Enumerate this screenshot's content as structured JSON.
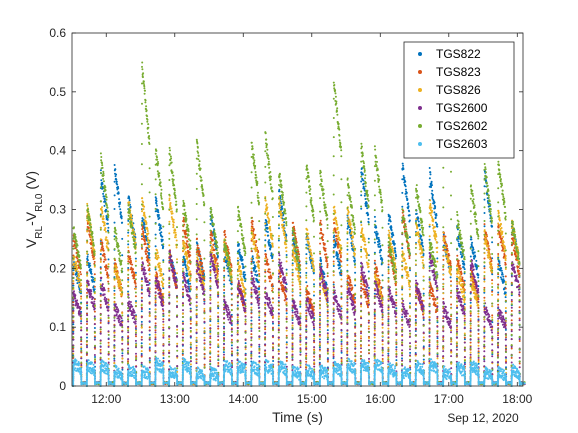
{
  "chart_data": {
    "type": "scatter",
    "xlabel": "Time (s)",
    "ylabel_main": "V",
    "ylabel_sub1": "RL",
    "ylabel_mid": "-V",
    "ylabel_sub2": "RL0",
    "ylabel_unit": " (V)",
    "date_label": "Sep 12, 2020",
    "x_ticks": [
      "12:00",
      "13:00",
      "14:00",
      "15:00",
      "16:00",
      "17:00",
      "18:00"
    ],
    "y_ticks": [
      "0",
      "0.1",
      "0.2",
      "0.3",
      "0.4",
      "0.5",
      "0.6"
    ],
    "xlim": [
      "11:30",
      "18:05"
    ],
    "ylim": [
      0,
      0.6
    ],
    "legend_position": "top-right",
    "pulse_cycle_minutes": 12,
    "colors": [
      "#0072BD",
      "#D95319",
      "#EDB120",
      "#7E2F8E",
      "#77AC30",
      "#4DBEEE"
    ],
    "series": [
      {
        "name": "TGS822",
        "color": "#0072BD",
        "typical_peak": 0.28
      },
      {
        "name": "TGS823",
        "color": "#D95319",
        "typical_peak": 0.22
      },
      {
        "name": "TGS826",
        "color": "#EDB120",
        "typical_peak": 0.24
      },
      {
        "name": "TGS2600",
        "color": "#7E2F8E",
        "typical_peak": 0.17
      },
      {
        "name": "TGS2602",
        "color": "#77AC30",
        "typical_peak": 0.32
      },
      {
        "name": "TGS2603",
        "color": "#4DBEEE",
        "typical_peak": 0.03
      }
    ],
    "max_value": 0.59
  }
}
